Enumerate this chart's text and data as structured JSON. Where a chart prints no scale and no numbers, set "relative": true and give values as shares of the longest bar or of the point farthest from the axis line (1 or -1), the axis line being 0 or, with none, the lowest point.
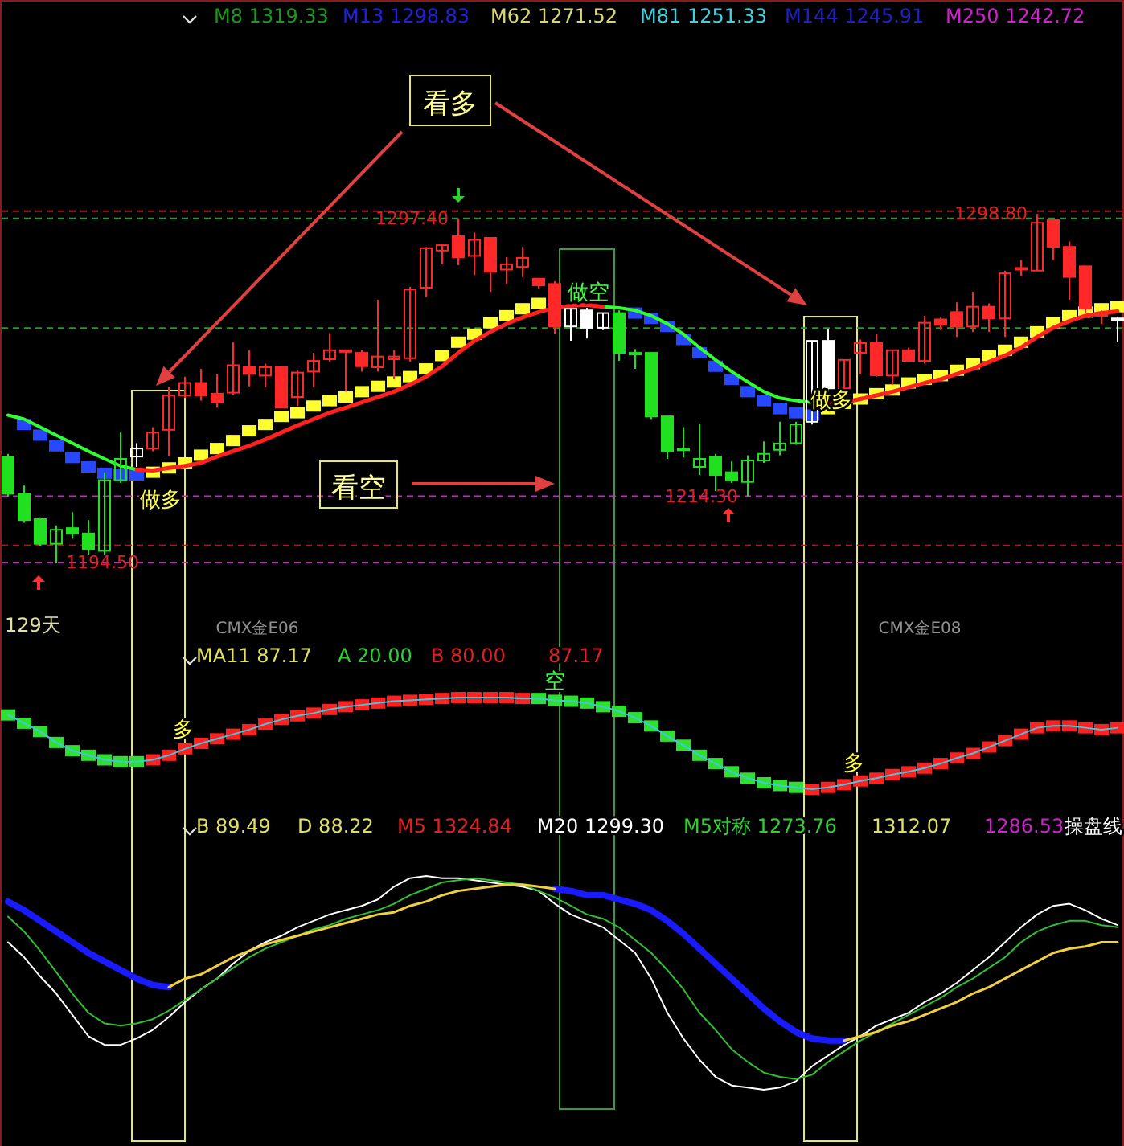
{
  "chart_data": [
    {
      "type": "candlestick",
      "categories": [
        null,
        null,
        null,
        null,
        null,
        null,
        null,
        null,
        null,
        null,
        null,
        null,
        null,
        null,
        null,
        null,
        null,
        null,
        null,
        null,
        null,
        null,
        null,
        null,
        null,
        null,
        null,
        null,
        null,
        null,
        null,
        null,
        null,
        null,
        null,
        null,
        null,
        null,
        null,
        null,
        null,
        null,
        null,
        null,
        null,
        null,
        null,
        null,
        null,
        null,
        null,
        null,
        null,
        null,
        null,
        null,
        null,
        null,
        null,
        null,
        null,
        null,
        null,
        null,
        null,
        null,
        null,
        null,
        null,
        null
      ],
      "ohlc": [
        [
          1226.2,
          1227.0,
          1214.2,
          1215.1
        ],
        [
          1215.1,
          1217.5,
          1206.4,
          1207.2
        ],
        [
          1207.5,
          1208.0,
          1199.3,
          1200.1
        ],
        [
          1200.1,
          1205.6,
          1194.5,
          1204.3
        ],
        [
          1204.8,
          1209.6,
          1201.6,
          1203.2
        ],
        [
          1203.2,
          1207.2,
          1196.9,
          1198.5
        ],
        [
          1198.0,
          1221.5,
          1196.9,
          1219.1
        ],
        [
          1219.1,
          1233.4,
          1218.3,
          1225.5
        ],
        [
          1226.2,
          1230.2,
          1223.1,
          1228.6
        ],
        [
          1228.6,
          1235.0,
          1227.8,
          1233.4
        ],
        [
          1234.2,
          1246.9,
          1226.2,
          1244.5
        ],
        [
          1244.5,
          1250.1,
          1243.7,
          1248.2
        ],
        [
          1248.2,
          1252.4,
          1242.9,
          1244.5
        ],
        [
          1245.0,
          1250.9,
          1240.8,
          1242.4
        ],
        [
          1245.3,
          1260.4,
          1244.5,
          1253.5
        ],
        [
          1252.9,
          1258.0,
          1247.2,
          1250.9
        ],
        [
          1250.4,
          1254.0,
          1246.9,
          1252.9
        ],
        [
          1252.9,
          1252.9,
          1240.8,
          1240.8
        ],
        [
          1244.0,
          1252.0,
          1241.3,
          1251.3
        ],
        [
          1251.6,
          1257.2,
          1246.9,
          1254.8
        ],
        [
          1255.3,
          1263.1,
          1254.5,
          1258.0
        ],
        [
          1258.0,
          1258.0,
          1245.6,
          1257.5
        ],
        [
          1257.2,
          1258.0,
          1251.6,
          1253.2
        ],
        [
          1252.9,
          1273.1,
          1251.6,
          1256.1
        ],
        [
          1255.3,
          1258.0,
          1249.3,
          1256.1
        ],
        [
          1255.6,
          1277.0,
          1254.5,
          1276.2
        ],
        [
          1276.7,
          1288.9,
          1273.9,
          1288.5
        ],
        [
          1287.8,
          1289.7,
          1283.7,
          1289.4
        ],
        [
          1292.1,
          1297.4,
          1283.4,
          1285.8
        ],
        [
          1286.2,
          1293.2,
          1280.5,
          1291.0
        ],
        [
          1291.6,
          1291.6,
          1275.5,
          1281.5
        ],
        [
          1282.1,
          1285.8,
          1277.8,
          1283.7
        ],
        [
          1282.9,
          1288.9,
          1279.9,
          1285.6
        ],
        [
          1279.4,
          1279.4,
          1276.2,
          1277.4
        ],
        [
          1277.8,
          1278.6,
          1262.8,
          1265.1
        ],
        [
          1265.1,
          1270.7,
          1260.8,
          1270.4
        ],
        [
          1269.9,
          1270.7,
          1261.5,
          1264.7
        ],
        [
          1264.7,
          1269.1,
          1264.0,
          1269.1
        ],
        [
          1269.1,
          1269.9,
          1254.8,
          1257.2
        ],
        [
          1257.2,
          1258.3,
          1252.4,
          1256.9
        ],
        [
          1257.2,
          1257.2,
          1237.4,
          1238.2
        ],
        [
          1238.2,
          1238.2,
          1225.5,
          1227.8
        ],
        [
          1228.6,
          1235.0,
          1225.9,
          1228.3
        ],
        [
          1223.1,
          1236.1,
          1220.7,
          1225.5
        ],
        [
          1226.2,
          1227.0,
          1215.9,
          1220.7
        ],
        [
          1221.5,
          1224.7,
          1218.3,
          1219.1
        ],
        [
          1218.6,
          1226.6,
          1214.3,
          1225.0
        ],
        [
          1225.0,
          1230.7,
          1224.3,
          1227.0
        ],
        [
          1228.2,
          1236.6,
          1226.6,
          1230.1
        ],
        [
          1230.2,
          1236.6,
          1229.7,
          1235.8
        ],
        [
          1236.6,
          1260.8,
          1235.8,
          1260.8
        ],
        [
          1260.8,
          1264.3,
          1245.6,
          1246.6
        ],
        [
          1246.6,
          1255.1,
          1246.1,
          1255.1
        ],
        [
          1257.2,
          1261.2,
          1250.9,
          1260.1
        ],
        [
          1260.1,
          1262.8,
          1250.1,
          1250.5
        ],
        [
          1250.4,
          1258.0,
          1247.7,
          1258.0
        ],
        [
          1258.0,
          1258.8,
          1254.5,
          1254.8
        ],
        [
          1254.8,
          1268.3,
          1254.0,
          1266.2
        ],
        [
          1267.2,
          1267.8,
          1264.0,
          1265.6
        ],
        [
          1269.4,
          1272.3,
          1262.0,
          1265.1
        ],
        [
          1265.1,
          1275.5,
          1263.5,
          1271.0
        ],
        [
          1271.0,
          1272.0,
          1263.5,
          1267.5
        ],
        [
          1267.5,
          1281.8,
          1262.0,
          1281.0
        ],
        [
          1282.1,
          1285.0,
          1280.2,
          1282.6
        ],
        [
          1281.8,
          1298.8,
          1281.8,
          1296.1
        ],
        [
          1296.9,
          1296.9,
          1285.0,
          1288.9
        ],
        [
          1288.9,
          1290.5,
          1273.1,
          1279.9
        ],
        [
          1283.1,
          1283.1,
          1269.1,
          1270.4
        ],
        [
          1268.8,
          1269.9,
          1265.9,
          1268.3
        ],
        [
          1267.5,
          1267.8,
          1260.4,
          1267.2
        ]
      ],
      "colors": [
        "#20e020",
        "#20e020",
        "#20e020",
        "#20e020",
        "#20e020",
        "#20e020",
        "#20e020",
        "#20e020",
        "#ffffff",
        "#ff2828",
        "#ff2828",
        "#ff2828",
        "#ff2828",
        "#ff2828",
        "#ff2828",
        "#ff2828",
        "#ff2828",
        "#ff2828",
        "#ff2828",
        "#ff2828",
        "#ff2828",
        "#ff2828",
        "#ff2828",
        "#ff2828",
        "#ff2828",
        "#ff2828",
        "#ff2828",
        "#ff2828",
        "#ff2828",
        "#ff2828",
        "#ff2828",
        "#ff2828",
        "#ff2828",
        "#ff2828",
        "#ff2828",
        "#ffffff",
        "#ffffff",
        "#ffffff",
        "#20e020",
        "#20e020",
        "#20e020",
        "#20e020",
        "#20e020",
        "#20e020",
        "#20e020",
        "#20e020",
        "#20e020",
        "#20e020",
        "#20e020",
        "#20e020",
        "#ffffff",
        "#ffffff",
        "#ff2828",
        "#ff2828",
        "#ff2828",
        "#ff2828",
        "#ff2828",
        "#ff2828",
        "#ff2828",
        "#ff2828",
        "#ff2828",
        "#ff2828",
        "#ff2828",
        "#ff2828",
        "#ff2828",
        "#ff2828",
        "#ff2828",
        "#ff2828",
        "#ff2828",
        "#ffffff"
      ],
      "series": [
        {
          "type": "scatter",
          "marker": "square",
          "colors": [
            null,
            "#2848ff",
            "#2848ff",
            "#2848ff",
            "#2848ff",
            "#2848ff",
            "#2848ff",
            "#2848ff",
            "#2848ff",
            "#ffff30",
            "#ffff30",
            "#ffff30",
            "#ffff30",
            "#ffff30",
            "#ffff30",
            "#ffff30",
            "#ffff30",
            "#ffff30",
            "#ffff30",
            "#ffff30",
            "#ffff30",
            "#ffff30",
            "#ffff30",
            "#ffff30",
            "#ffff30",
            "#ffff30",
            "#ffff30",
            "#ffff30",
            "#ffff30",
            "#ffff30",
            "#ffff30",
            "#ffff30",
            "#ffff30",
            "#ffff30",
            null,
            null,
            null,
            null,
            null,
            "#2848ff",
            "#2848ff",
            "#2848ff",
            "#2848ff",
            "#2848ff",
            "#2848ff",
            "#2848ff",
            "#2848ff",
            "#2848ff",
            "#2848ff",
            "#2848ff",
            "#2848ff",
            "#ffff30",
            "#ffff30",
            "#ffff30",
            "#ffff30",
            "#ffff30",
            "#ffff30",
            "#ffff30",
            "#ffff30",
            "#ffff30",
            "#ffff30",
            "#ffff30",
            "#ffff30",
            "#ffff30",
            "#ffff30",
            "#ffff30",
            "#ffff30",
            "#ffff30",
            "#ffff30",
            "#ffff30"
          ],
          "values": [
            null,
            1235.8,
            1232.6,
            1229.4,
            1225.9,
            1223.1,
            1221.2,
            1220.7,
            1220.7,
            1221.5,
            1222.8,
            1224.3,
            1226.6,
            1228.6,
            1231.0,
            1233.9,
            1235.8,
            1238.2,
            1239.3,
            1241.3,
            1242.9,
            1244.0,
            1245.6,
            1247.2,
            1248.5,
            1250.1,
            1252.4,
            1256.4,
            1260.4,
            1262.8,
            1266.2,
            1268.3,
            1270.4,
            1272.0,
            null,
            null,
            null,
            null,
            null,
            1269.1,
            1267.5,
            1265.1,
            1261.2,
            1257.2,
            1253.2,
            1249.3,
            1245.6,
            1242.9,
            1240.5,
            1239.3,
            1238.6,
            1240.5,
            1242.1,
            1243.4,
            1245.0,
            1246.1,
            1248.2,
            1249.3,
            1250.4,
            1252.0,
            1254.0,
            1256.4,
            1258.0,
            1260.4,
            1263.5,
            1266.2,
            1268.3,
            1269.4,
            1270.4,
            1271.0
          ]
        },
        {
          "type": "line",
          "color": "#30ff30",
          "values": [
            1238.6,
            1237.4,
            1235.0,
            1232.6,
            1230.2,
            1227.8,
            1225.5,
            1223.4,
            1222.3,
            null,
            null,
            null,
            null,
            null,
            null,
            null,
            null,
            null,
            null,
            null,
            null,
            null,
            null,
            null,
            null,
            null,
            null,
            null,
            null,
            null,
            null,
            null,
            null,
            null,
            null,
            null,
            null,
            1271.0,
            1270.7,
            1269.9,
            1268.3,
            1265.9,
            1262.8,
            1258.8,
            1255.1,
            1251.6,
            1248.5,
            1245.6,
            1243.7,
            1242.9,
            1242.4,
            null,
            null,
            null,
            null,
            null,
            null,
            null,
            null,
            null,
            null,
            null,
            null,
            null,
            null,
            null,
            null,
            null,
            null,
            null
          ]
        },
        {
          "type": "line",
          "color": "#ff2020",
          "values": [
            null,
            null,
            null,
            null,
            null,
            null,
            null,
            null,
            1222.3,
            1222.0,
            1222.8,
            1223.4,
            1224.3,
            1226.2,
            1227.8,
            1229.4,
            1231.3,
            1233.4,
            1235.5,
            1237.4,
            1239.3,
            1240.8,
            1242.4,
            1244.0,
            1245.6,
            1247.7,
            1250.1,
            1253.2,
            1257.2,
            1260.8,
            1263.5,
            1265.9,
            1267.8,
            1269.4,
            1270.7,
            1271.3,
            1271.5,
            1271.0,
            null,
            null,
            null,
            null,
            null,
            null,
            null,
            null,
            null,
            null,
            null,
            null,
            null,
            1241.8,
            1242.4,
            1243.4,
            1244.5,
            1245.6,
            1246.9,
            1248.2,
            1249.3,
            1250.9,
            1252.4,
            1254.5,
            1256.4,
            1258.8,
            1262.0,
            1264.7,
            1266.7,
            1268.3,
            1269.1,
            1269.6
          ]
        }
      ],
      "ref_lines": [
        {
          "axis": "y",
          "value": 1299.6,
          "color": "#a02020",
          "line_style": "dashed"
        },
        {
          "axis": "y",
          "value": 1297.4,
          "color": "#20a020",
          "line_style": "dashed"
        },
        {
          "axis": "y",
          "value": 1264.6,
          "color": "#20a020",
          "line_style": "dashed"
        },
        {
          "axis": "y",
          "value": 1214.3,
          "color": "#c030c0",
          "line_style": "dashed"
        },
        {
          "axis": "y",
          "value": 1199.6,
          "color": "#a02020",
          "line_style": "dashed"
        },
        {
          "axis": "y",
          "value": 1194.5,
          "color": "#c030c0",
          "line_style": "dashed"
        }
      ],
      "annotations": [
        "M8 1319.33",
        "M13 1298.83",
        "M62 1271.52",
        "M81 1251.33",
        "M144 1245.91",
        "M250 1242.72",
        "看多",
        "看空",
        "做空",
        "做多",
        "做多",
        "129天",
        "CMX金E06",
        "CMX金E08",
        {
          "text": "1297.40",
          "y": 1297.4
        },
        {
          "text": "1298.80",
          "y": 1298.8
        },
        {
          "text": "1194.50",
          "y": 1194.5
        },
        {
          "text": "1214.30",
          "y": 1214.3
        }
      ]
    },
    {
      "type": "line",
      "relative": true,
      "marker": "square",
      "categories": [
        null,
        null,
        null,
        null,
        null,
        null,
        null,
        null,
        null,
        null,
        null,
        null,
        null,
        null,
        null,
        null,
        null,
        null,
        null,
        null,
        null,
        null,
        null,
        null,
        null,
        null,
        null,
        null,
        null,
        null,
        null,
        null,
        null,
        null,
        null,
        null,
        null,
        null,
        null,
        null,
        null,
        null,
        null,
        null,
        null,
        null,
        null,
        null,
        null,
        null,
        null,
        null,
        null,
        null,
        null,
        null,
        null,
        null,
        null,
        null,
        null,
        null,
        null,
        null,
        null,
        null,
        null,
        null,
        null,
        null
      ],
      "series": [
        {
          "color": "#40c8e0",
          "colors": [
            "#30e030",
            "#30e030",
            "#30e030",
            "#30e030",
            "#30e030",
            "#30e030",
            "#30e030",
            "#30e030",
            "#30e030",
            "#ff2020",
            "#ff2020",
            "#ff2020",
            "#ff2020",
            "#ff2020",
            "#ff2020",
            "#ff2020",
            "#ff2020",
            "#ff2020",
            "#ff2020",
            "#ff2020",
            "#ff2020",
            "#ff2020",
            "#ff2020",
            "#ff2020",
            "#ff2020",
            "#ff2020",
            "#ff2020",
            "#ff2020",
            "#ff2020",
            "#ff2020",
            "#ff2020",
            "#ff2020",
            "#ff2020",
            "#30e030",
            "#30e030",
            "#30e030",
            "#30e030",
            "#30e030",
            "#30e030",
            "#30e030",
            "#30e030",
            "#30e030",
            "#30e030",
            "#30e030",
            "#30e030",
            "#30e030",
            "#30e030",
            "#30e030",
            "#30e030",
            "#30e030",
            "#ff2020",
            "#ff2020",
            "#ff2020",
            "#ff2020",
            "#ff2020",
            "#ff2020",
            "#ff2020",
            "#ff2020",
            "#ff2020",
            "#ff2020",
            "#ff2020",
            "#ff2020",
            "#ff2020",
            "#ff2020",
            "#ff2020",
            "#ff2020",
            "#ff2020",
            "#ff2020",
            "#ff2020",
            "#ff2020"
          ],
          "values": [
            0.81,
            0.72,
            0.63,
            0.51,
            0.42,
            0.37,
            0.32,
            0.3,
            0.3,
            0.32,
            0.37,
            0.44,
            0.5,
            0.55,
            0.6,
            0.65,
            0.71,
            0.76,
            0.8,
            0.83,
            0.87,
            0.9,
            0.92,
            0.94,
            0.96,
            0.97,
            0.98,
            0.99,
            1,
            1,
            1,
            1,
            0.99,
            0.99,
            0.97,
            0.96,
            0.94,
            0.9,
            0.85,
            0.78,
            0.69,
            0.58,
            0.48,
            0.37,
            0.28,
            0.19,
            0.12,
            0.07,
            0.04,
            0.02,
            0,
            0.02,
            0.05,
            0.09,
            0.12,
            0.16,
            0.19,
            0.23,
            0.28,
            0.34,
            0.39,
            0.46,
            0.53,
            0.6,
            0.67,
            0.69,
            0.69,
            0.67,
            0.65,
            0.67
          ]
        }
      ],
      "annotations": [
        "MA11 87.17",
        "A 20.00",
        "B 80.00",
        "87.17",
        "多",
        "空",
        "多"
      ]
    },
    {
      "type": "line",
      "relative": true,
      "categories": [
        null,
        null,
        null,
        null,
        null,
        null,
        null,
        null,
        null,
        null,
        null,
        null,
        null,
        null,
        null,
        null,
        null,
        null,
        null,
        null,
        null,
        null,
        null,
        null,
        null,
        null,
        null,
        null,
        null,
        null,
        null,
        null,
        null,
        null,
        null,
        null,
        null,
        null,
        null,
        null,
        null,
        null,
        null,
        null,
        null,
        null,
        null,
        null,
        null,
        null,
        null,
        null,
        null,
        null,
        null,
        null,
        null,
        null,
        null,
        null,
        null,
        null,
        null,
        null,
        null,
        null,
        null,
        null,
        null,
        null
      ],
      "series": [
        {
          "color": "#ffffff",
          "values": [
            0.69,
            0.62,
            0.53,
            0.45,
            0.35,
            0.25,
            0.21,
            0.21,
            0.24,
            0.28,
            0.34,
            0.41,
            0.47,
            0.52,
            0.59,
            0.65,
            0.69,
            0.72,
            0.76,
            0.79,
            0.82,
            0.84,
            0.86,
            0.89,
            0.95,
            0.99,
            1,
            0.99,
            0.99,
            0.98,
            0.97,
            0.96,
            0.95,
            0.93,
            0.87,
            0.82,
            0.79,
            0.76,
            0.7,
            0.64,
            0.52,
            0.36,
            0.24,
            0.14,
            0.06,
            0.02,
            0.01,
            0,
            0.01,
            0.04,
            0.11,
            0.16,
            0.21,
            0.25,
            0.3,
            0.33,
            0.36,
            0.41,
            0.45,
            0.5,
            0.56,
            0.62,
            0.69,
            0.76,
            0.82,
            0.86,
            0.87,
            0.84,
            0.8,
            0.77
          ]
        },
        {
          "color": "#30c030",
          "values": [
            0.81,
            0.74,
            0.65,
            0.55,
            0.45,
            0.36,
            0.31,
            0.3,
            0.31,
            0.33,
            0.37,
            0.42,
            0.47,
            0.52,
            0.57,
            0.62,
            0.66,
            0.69,
            0.72,
            0.75,
            0.77,
            0.8,
            0.82,
            0.84,
            0.87,
            0.91,
            0.94,
            0.97,
            0.98,
            0.99,
            0.98,
            0.97,
            0.96,
            0.93,
            0.9,
            0.86,
            0.82,
            0.8,
            0.76,
            0.7,
            0.64,
            0.56,
            0.47,
            0.36,
            0.28,
            0.19,
            0.13,
            0.08,
            0.06,
            0.05,
            0.07,
            0.13,
            0.18,
            0.23,
            0.27,
            0.31,
            0.35,
            0.39,
            0.43,
            0.48,
            0.52,
            0.57,
            0.62,
            0.69,
            0.74,
            0.77,
            0.79,
            0.79,
            0.77,
            0.76
          ]
        },
        {
          "color": "#1a1aff",
          "values": [
            0.88,
            0.84,
            0.79,
            0.74,
            0.69,
            0.64,
            0.6,
            0.56,
            0.52,
            0.49,
            0.48,
            null,
            null,
            null,
            null,
            null,
            null,
            null,
            null,
            null,
            null,
            null,
            null,
            null,
            null,
            null,
            null,
            null,
            null,
            null,
            null,
            null,
            null,
            null,
            0.94,
            0.93,
            0.91,
            0.91,
            0.89,
            0.87,
            0.84,
            0.79,
            0.73,
            0.66,
            0.59,
            0.52,
            0.45,
            0.38,
            0.32,
            0.27,
            0.24,
            0.23,
            0.23,
            null,
            null,
            null,
            null,
            null,
            null,
            null,
            null,
            null,
            null,
            null,
            null,
            null,
            null,
            null,
            null,
            null
          ]
        },
        {
          "color": "#f0d040",
          "values": [
            null,
            null,
            null,
            null,
            null,
            null,
            null,
            null,
            null,
            null,
            0.48,
            0.52,
            0.54,
            0.58,
            0.62,
            0.65,
            0.68,
            0.7,
            0.72,
            0.74,
            0.76,
            0.78,
            0.8,
            0.82,
            0.83,
            0.86,
            0.88,
            0.91,
            0.93,
            0.94,
            0.95,
            0.96,
            0.96,
            0.95,
            0.94,
            null,
            null,
            null,
            null,
            null,
            null,
            null,
            null,
            null,
            null,
            null,
            null,
            null,
            null,
            null,
            null,
            null,
            0.23,
            0.25,
            0.27,
            0.3,
            0.32,
            0.35,
            0.38,
            0.41,
            0.45,
            0.48,
            0.52,
            0.56,
            0.6,
            0.64,
            0.66,
            0.67,
            0.69,
            0.69
          ]
        }
      ],
      "annotations": [
        "B 89.49",
        "D 88.22",
        "M5 1324.84",
        "M20 1299.30",
        "M5对称 1273.76",
        "1312.07",
        "1286.53",
        "操盘线"
      ]
    }
  ]
}
